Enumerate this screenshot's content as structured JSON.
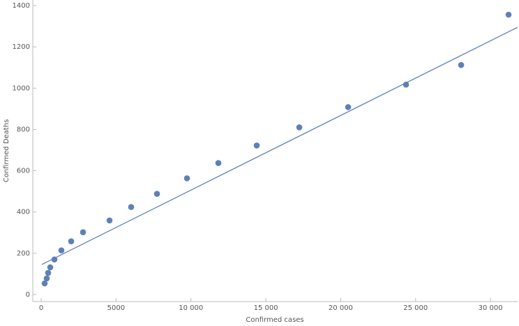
{
  "chart_data": {
    "type": "scatter",
    "x_label": "Confirmed cases",
    "y_label": "Confirmed  Deaths",
    "points": {
      "color": "#5e81b5",
      "x": [
        233,
        373,
        466,
        605,
        885,
        1351,
        2003,
        2795,
        4564,
        6008,
        7732,
        9735,
        11830,
        14392,
        17233,
        20494,
        24360,
        28040,
        31206
      ],
      "values": [
        54,
        78,
        105,
        132,
        170,
        214,
        258,
        302,
        359,
        424,
        488,
        563,
        637,
        722,
        810,
        908,
        1017,
        1112,
        1356
      ]
    },
    "fit_line": {
      "color": "#5e81b5",
      "x": [
        50,
        31810
      ],
      "values": [
        146,
        1295
      ]
    },
    "xlim": [
      -560,
      31810
    ],
    "ylim": [
      -34,
      1427
    ],
    "xticks": [
      0,
      5000,
      {
        "value": 10000,
        "label": "10 000"
      },
      {
        "value": 15000,
        "label": "15 000"
      },
      {
        "value": 20000,
        "label": "20 000"
      },
      {
        "value": 25000,
        "label": "25 000"
      },
      {
        "value": 30000,
        "label": "30 000"
      }
    ],
    "yticks": [
      0,
      200,
      400,
      600,
      800,
      1000,
      1200,
      1400
    ]
  }
}
